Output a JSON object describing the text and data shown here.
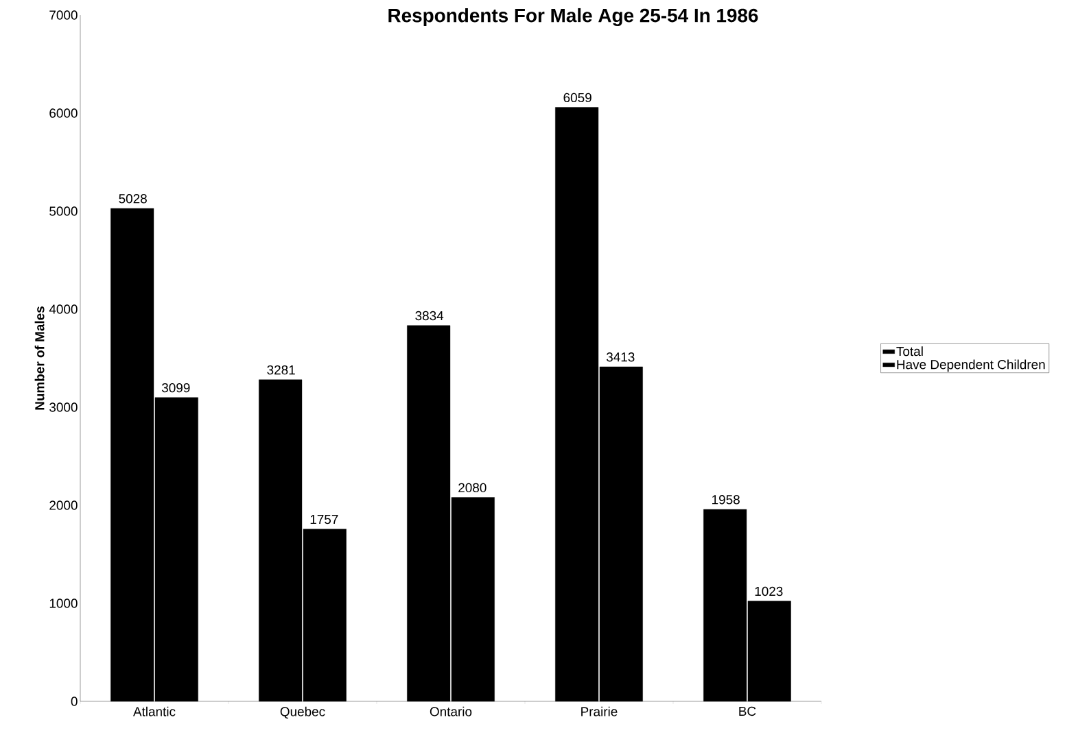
{
  "chart_data": {
    "type": "bar",
    "title": "Respondents For Male Age 25-54 In 1986",
    "ylabel": "Number of Males",
    "categories": [
      "Atlantic",
      "Quebec",
      "Ontario",
      "Prairie",
      "BC"
    ],
    "series": [
      {
        "name": "Total",
        "color": "#000000",
        "values": [
          5028,
          3281,
          3834,
          6059,
          1958
        ]
      },
      {
        "name": "Have Dependent Children",
        "color": "#000000",
        "values": [
          3099,
          1757,
          2080,
          3413,
          1023
        ]
      }
    ],
    "ylim": [
      0,
      7000
    ],
    "yticks": [
      0,
      1000,
      2000,
      3000,
      4000,
      5000,
      6000,
      7000
    ],
    "data_labels": true,
    "legend": "right",
    "grid": false
  }
}
